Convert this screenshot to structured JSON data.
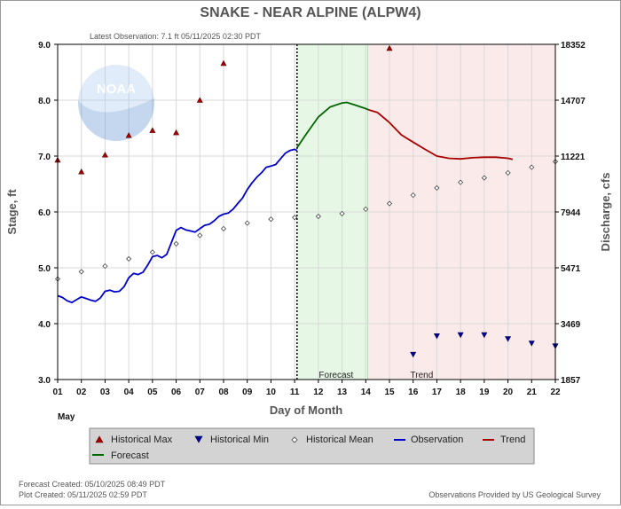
{
  "header": {
    "title": "SNAKE - NEAR ALPINE  (ALPW4)",
    "latest_observation": "Latest Observation: 7.1 ft 05/11/2025 02:30 PDT"
  },
  "footer": {
    "forecast_created": "Forecast Created: 05/10/2025 08:49 PDT",
    "plot_created": "Plot Created: 05/11/2025 02:59 PDT",
    "provided_by": "Observations Provided by US Geological Survey"
  },
  "logo_text": "NOAA",
  "chart_data": {
    "type": "line",
    "xlabel": "Day of Month",
    "ylabel_left": "Stage, ft",
    "ylabel_right": "Discharge, cfs",
    "month_label": "May",
    "xlim": [
      1,
      22
    ],
    "ylim": [
      3.0,
      9.0
    ],
    "x_ticks": [
      "01",
      "02",
      "03",
      "04",
      "05",
      "06",
      "07",
      "08",
      "09",
      "10",
      "11",
      "12",
      "13",
      "14",
      "15",
      "16",
      "17",
      "18",
      "19",
      "20",
      "21",
      "22"
    ],
    "y_ticks_left": [
      3.0,
      4.0,
      5.0,
      6.0,
      7.0,
      8.0,
      9.0
    ],
    "y_tick_labels_left": [
      "3.0",
      "4.0",
      "5.0",
      "6.0",
      "7.0",
      "8.0",
      "9.0"
    ],
    "y_tick_labels_right": [
      "1857",
      "3469",
      "5471",
      "7944",
      "11221",
      "14707",
      "18352"
    ],
    "latest_observation_day": 11.1,
    "forecast_band": {
      "start": 11.1,
      "end": 14.1,
      "label": "Forecast"
    },
    "trend_band": {
      "start": 14.1,
      "end": 22,
      "label": "Trend"
    },
    "legend": [
      {
        "key": "hist_max",
        "label": "Historical Max"
      },
      {
        "key": "hist_min",
        "label": "Historical Min"
      },
      {
        "key": "hist_mean",
        "label": "Historical Mean"
      },
      {
        "key": "observation",
        "label": "Observation"
      },
      {
        "key": "trend",
        "label": "Trend"
      },
      {
        "key": "forecast",
        "label": "Forecast"
      }
    ],
    "series": {
      "observation": {
        "color": "#0000cc",
        "points": [
          [
            1,
            4.5
          ],
          [
            1.2,
            4.47
          ],
          [
            1.4,
            4.41
          ],
          [
            1.6,
            4.38
          ],
          [
            1.8,
            4.43
          ],
          [
            2.0,
            4.48
          ],
          [
            2.2,
            4.45
          ],
          [
            2.4,
            4.42
          ],
          [
            2.6,
            4.4
          ],
          [
            2.8,
            4.46
          ],
          [
            3.0,
            4.58
          ],
          [
            3.2,
            4.6
          ],
          [
            3.4,
            4.57
          ],
          [
            3.6,
            4.58
          ],
          [
            3.8,
            4.66
          ],
          [
            4.0,
            4.82
          ],
          [
            4.2,
            4.9
          ],
          [
            4.4,
            4.88
          ],
          [
            4.6,
            4.92
          ],
          [
            4.8,
            5.05
          ],
          [
            5.0,
            5.2
          ],
          [
            5.2,
            5.22
          ],
          [
            5.4,
            5.18
          ],
          [
            5.6,
            5.24
          ],
          [
            5.8,
            5.45
          ],
          [
            6.0,
            5.67
          ],
          [
            6.2,
            5.72
          ],
          [
            6.4,
            5.68
          ],
          [
            6.6,
            5.66
          ],
          [
            6.8,
            5.64
          ],
          [
            7.0,
            5.7
          ],
          [
            7.2,
            5.76
          ],
          [
            7.4,
            5.78
          ],
          [
            7.6,
            5.84
          ],
          [
            7.8,
            5.92
          ],
          [
            8.0,
            5.96
          ],
          [
            8.2,
            5.98
          ],
          [
            8.4,
            6.05
          ],
          [
            8.6,
            6.15
          ],
          [
            8.8,
            6.25
          ],
          [
            9.0,
            6.4
          ],
          [
            9.2,
            6.52
          ],
          [
            9.4,
            6.62
          ],
          [
            9.6,
            6.7
          ],
          [
            9.8,
            6.8
          ],
          [
            10.0,
            6.82
          ],
          [
            10.2,
            6.85
          ],
          [
            10.4,
            6.95
          ],
          [
            10.6,
            7.05
          ],
          [
            10.8,
            7.1
          ],
          [
            11.0,
            7.12
          ],
          [
            11.1,
            7.1
          ]
        ]
      },
      "forecast": {
        "color": "#006600",
        "points": [
          [
            11.1,
            7.15
          ],
          [
            11.5,
            7.4
          ],
          [
            12.0,
            7.7
          ],
          [
            12.5,
            7.88
          ],
          [
            13.0,
            7.95
          ],
          [
            13.2,
            7.96
          ],
          [
            13.5,
            7.92
          ],
          [
            14.0,
            7.85
          ],
          [
            14.1,
            7.83
          ]
        ]
      },
      "trend": {
        "color": "#aa0000",
        "points": [
          [
            14.1,
            7.83
          ],
          [
            14.5,
            7.78
          ],
          [
            15.0,
            7.6
          ],
          [
            15.5,
            7.38
          ],
          [
            16.0,
            7.25
          ],
          [
            16.5,
            7.12
          ],
          [
            17.0,
            7.0
          ],
          [
            17.5,
            6.96
          ],
          [
            18.0,
            6.95
          ],
          [
            18.5,
            6.97
          ],
          [
            19.0,
            6.98
          ],
          [
            19.5,
            6.98
          ],
          [
            20.0,
            6.96
          ],
          [
            20.2,
            6.94
          ]
        ]
      },
      "hist_max": {
        "color": "#aa0000",
        "points": [
          [
            1,
            6.93
          ],
          [
            2,
            6.72
          ],
          [
            3,
            7.02
          ],
          [
            4,
            7.37
          ],
          [
            5,
            7.46
          ],
          [
            6,
            7.42
          ],
          [
            7,
            8.0
          ],
          [
            8,
            8.66
          ],
          [
            15,
            8.93
          ]
        ]
      },
      "hist_min": {
        "color": "#000099",
        "points": [
          [
            16,
            3.45
          ],
          [
            17,
            3.78
          ],
          [
            18,
            3.8
          ],
          [
            19,
            3.8
          ],
          [
            20,
            3.73
          ],
          [
            21,
            3.65
          ],
          [
            22,
            3.6
          ]
        ]
      },
      "hist_mean": {
        "color": "#444444",
        "points": [
          [
            1,
            4.8
          ],
          [
            2,
            4.93
          ],
          [
            3,
            5.03
          ],
          [
            4,
            5.16
          ],
          [
            5,
            5.28
          ],
          [
            6,
            5.43
          ],
          [
            7,
            5.58
          ],
          [
            8,
            5.7
          ],
          [
            9,
            5.8
          ],
          [
            10,
            5.87
          ],
          [
            11,
            5.9
          ],
          [
            12,
            5.92
          ],
          [
            13,
            5.97
          ],
          [
            14,
            6.05
          ],
          [
            15,
            6.15
          ],
          [
            16,
            6.3
          ],
          [
            17,
            6.43
          ],
          [
            18,
            6.53
          ],
          [
            19,
            6.61
          ],
          [
            20,
            6.7
          ],
          [
            21,
            6.8
          ],
          [
            22,
            6.9
          ]
        ]
      }
    }
  }
}
